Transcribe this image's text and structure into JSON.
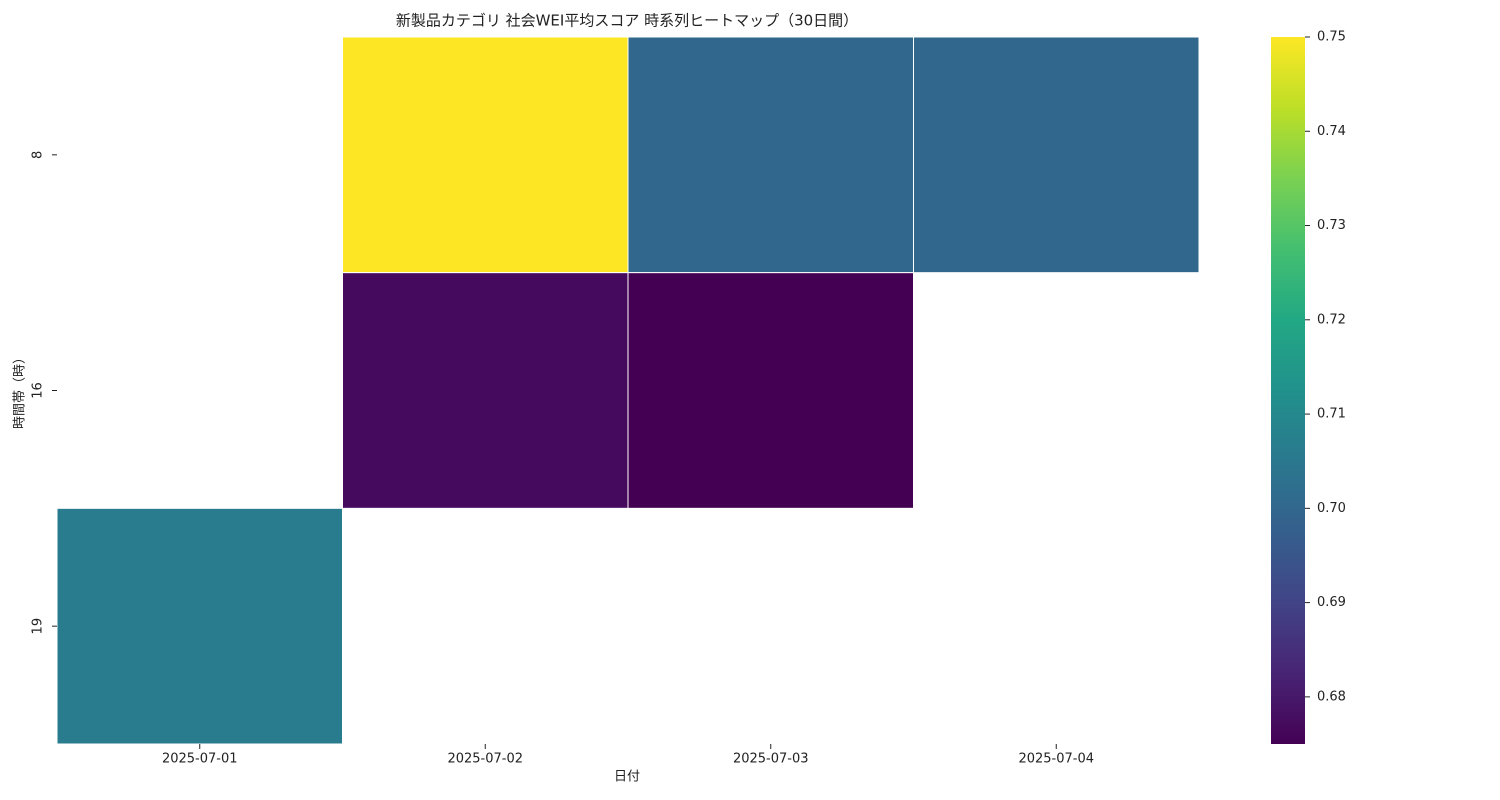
{
  "chart_data": {
    "type": "heatmap",
    "title": "新製品カテゴリ 社会WEI平均スコア 時系列ヒートマップ（30日間）",
    "x_label": "日付",
    "y_label": "時間帯（時）",
    "x_categories": [
      "2025-07-01",
      "2025-07-02",
      "2025-07-03",
      "2025-07-04"
    ],
    "y_categories": [
      "8",
      "16",
      "19"
    ],
    "values": [
      [
        null,
        0.75,
        0.7,
        0.7
      ],
      [
        null,
        0.677,
        0.675,
        null
      ],
      [
        0.706,
        null,
        null,
        null
      ]
    ],
    "colormap": "viridis",
    "zlim": [
      0.675,
      0.75
    ],
    "zticks": [
      0.68,
      0.69,
      {
        "value": 0.7,
        "label": "0.70"
      },
      0.71,
      0.72,
      0.73,
      0.74,
      0.75
    ]
  }
}
